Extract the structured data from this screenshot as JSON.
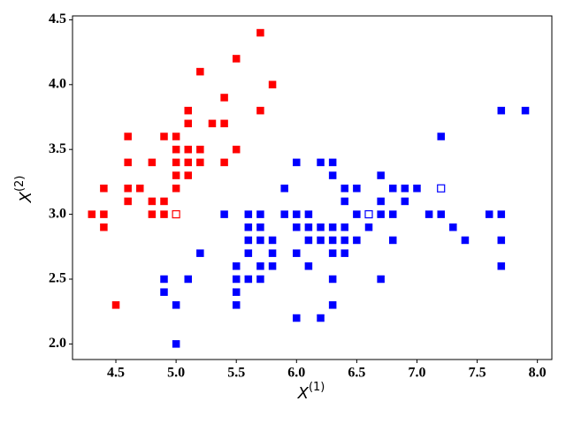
{
  "chart_data": {
    "type": "scatter",
    "xlabel": "X",
    "xlabel_sup": "(1)",
    "ylabel": "X",
    "ylabel_sup": "(2)",
    "xlim": [
      4.14,
      8.12
    ],
    "ylim": [
      1.88,
      4.53
    ],
    "xticks": [
      4.5,
      {
        "value": 5,
        "label": "5.0"
      },
      5.5,
      {
        "value": 6,
        "label": "6.0"
      },
      6.5,
      {
        "value": 7,
        "label": "7.0"
      },
      7.5,
      {
        "value": 8,
        "label": "8.0"
      }
    ],
    "yticks": [
      {
        "value": 2,
        "label": "2.0"
      },
      2.5,
      {
        "value": 3,
        "label": "3.0"
      },
      3.5,
      {
        "value": 4,
        "label": "4.0"
      },
      4.5
    ],
    "grid": false,
    "series": [
      {
        "color": "#ff0000",
        "filled": true,
        "x": [
          4.3,
          4.4,
          4.4,
          4.4,
          4.5,
          4.6,
          4.6,
          4.6,
          4.6,
          4.7,
          4.8,
          4.8,
          4.8,
          4.9,
          4.9,
          4.9,
          5.0,
          5.0,
          5.0,
          5.0,
          5.0,
          5.1,
          5.1,
          5.1,
          5.1,
          5.1,
          5.2,
          5.2,
          5.2,
          5.3,
          5.4,
          5.4,
          5.4,
          5.5,
          5.5,
          5.7,
          5.7,
          5.8
        ],
        "values": [
          3.0,
          3.0,
          3.2,
          2.9,
          2.3,
          3.6,
          3.4,
          3.2,
          3.1,
          3.2,
          3.4,
          3.1,
          3.0,
          3.6,
          3.1,
          3.0,
          3.6,
          3.5,
          3.4,
          3.3,
          3.2,
          3.8,
          3.7,
          3.5,
          3.4,
          3.3,
          4.1,
          3.5,
          3.4,
          3.7,
          3.9,
          3.7,
          3.4,
          4.2,
          3.5,
          4.4,
          3.8,
          4.0
        ]
      },
      {
        "color": "#0000ff",
        "filled": true,
        "x": [
          4.9,
          4.9,
          5.0,
          5.0,
          5.1,
          5.2,
          5.4,
          5.5,
          5.5,
          5.5,
          5.5,
          5.6,
          5.6,
          5.6,
          5.6,
          5.6,
          5.7,
          5.7,
          5.7,
          5.7,
          5.7,
          5.8,
          5.8,
          5.8,
          5.9,
          5.9,
          6.0,
          6.0,
          6.0,
          6.0,
          6.0,
          6.1,
          6.1,
          6.1,
          6.1,
          6.2,
          6.2,
          6.2,
          6.2,
          6.3,
          6.3,
          6.3,
          6.3,
          6.3,
          6.3,
          6.3,
          6.4,
          6.4,
          6.4,
          6.4,
          6.4,
          6.5,
          6.5,
          6.5,
          6.6,
          6.7,
          6.7,
          6.7,
          6.7,
          6.8,
          6.8,
          6.8,
          6.9,
          6.9,
          7.0,
          7.1,
          7.2,
          7.2,
          7.3,
          7.4,
          7.6,
          7.7,
          7.7,
          7.7,
          7.7,
          7.9
        ],
        "values": [
          2.5,
          2.4,
          2.3,
          2.0,
          2.5,
          2.7,
          3.0,
          2.6,
          2.5,
          2.4,
          2.3,
          3.0,
          2.9,
          2.8,
          2.7,
          2.5,
          3.0,
          2.9,
          2.8,
          2.6,
          2.5,
          2.8,
          2.7,
          2.6,
          3.2,
          3.0,
          3.4,
          3.0,
          2.9,
          2.7,
          2.2,
          3.0,
          2.9,
          2.8,
          2.6,
          3.4,
          2.9,
          2.8,
          2.2,
          3.4,
          3.3,
          2.9,
          2.8,
          2.7,
          2.5,
          2.3,
          3.2,
          3.1,
          2.9,
          2.8,
          2.7,
          3.2,
          3.0,
          2.8,
          2.9,
          3.3,
          3.1,
          3.0,
          2.5,
          3.2,
          3.0,
          2.8,
          3.2,
          3.1,
          3.2,
          3.0,
          3.6,
          3.0,
          2.9,
          2.8,
          3.0,
          3.8,
          3.0,
          2.8,
          2.6,
          3.8
        ]
      },
      {
        "color": "#ff0000",
        "filled": false,
        "x": [
          5.0
        ],
        "values": [
          3.0
        ]
      },
      {
        "color": "#0000ff",
        "filled": false,
        "x": [
          6.6,
          7.2
        ],
        "values": [
          3.0,
          3.2
        ]
      }
    ]
  }
}
